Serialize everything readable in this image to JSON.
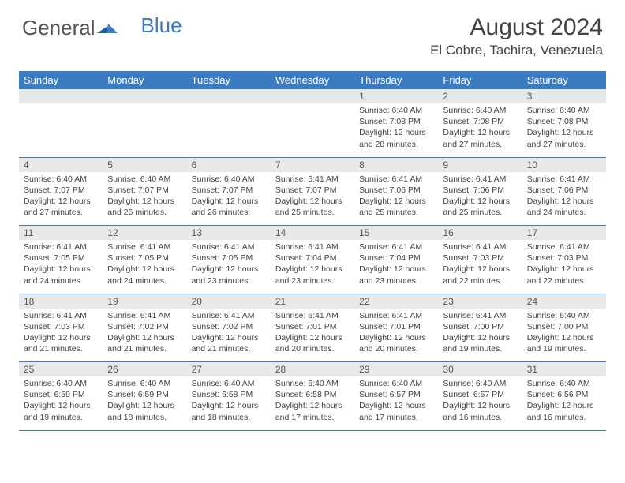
{
  "logo": {
    "part1": "General",
    "part2": "Blue"
  },
  "title": "August 2024",
  "location": "El Cobre, Tachira, Venezuela",
  "colors": {
    "header_bg": "#3b7bbf",
    "daynum_bg": "#e9e9e9",
    "text": "#444444",
    "border": "#3b7bbf"
  },
  "day_headers": [
    "Sunday",
    "Monday",
    "Tuesday",
    "Wednesday",
    "Thursday",
    "Friday",
    "Saturday"
  ],
  "weeks": [
    [
      null,
      null,
      null,
      null,
      {
        "n": "1",
        "sr": "Sunrise: 6:40 AM",
        "ss": "Sunset: 7:08 PM",
        "dl1": "Daylight: 12 hours",
        "dl2": "and 28 minutes."
      },
      {
        "n": "2",
        "sr": "Sunrise: 6:40 AM",
        "ss": "Sunset: 7:08 PM",
        "dl1": "Daylight: 12 hours",
        "dl2": "and 27 minutes."
      },
      {
        "n": "3",
        "sr": "Sunrise: 6:40 AM",
        "ss": "Sunset: 7:08 PM",
        "dl1": "Daylight: 12 hours",
        "dl2": "and 27 minutes."
      }
    ],
    [
      {
        "n": "4",
        "sr": "Sunrise: 6:40 AM",
        "ss": "Sunset: 7:07 PM",
        "dl1": "Daylight: 12 hours",
        "dl2": "and 27 minutes."
      },
      {
        "n": "5",
        "sr": "Sunrise: 6:40 AM",
        "ss": "Sunset: 7:07 PM",
        "dl1": "Daylight: 12 hours",
        "dl2": "and 26 minutes."
      },
      {
        "n": "6",
        "sr": "Sunrise: 6:40 AM",
        "ss": "Sunset: 7:07 PM",
        "dl1": "Daylight: 12 hours",
        "dl2": "and 26 minutes."
      },
      {
        "n": "7",
        "sr": "Sunrise: 6:41 AM",
        "ss": "Sunset: 7:07 PM",
        "dl1": "Daylight: 12 hours",
        "dl2": "and 25 minutes."
      },
      {
        "n": "8",
        "sr": "Sunrise: 6:41 AM",
        "ss": "Sunset: 7:06 PM",
        "dl1": "Daylight: 12 hours",
        "dl2": "and 25 minutes."
      },
      {
        "n": "9",
        "sr": "Sunrise: 6:41 AM",
        "ss": "Sunset: 7:06 PM",
        "dl1": "Daylight: 12 hours",
        "dl2": "and 25 minutes."
      },
      {
        "n": "10",
        "sr": "Sunrise: 6:41 AM",
        "ss": "Sunset: 7:06 PM",
        "dl1": "Daylight: 12 hours",
        "dl2": "and 24 minutes."
      }
    ],
    [
      {
        "n": "11",
        "sr": "Sunrise: 6:41 AM",
        "ss": "Sunset: 7:05 PM",
        "dl1": "Daylight: 12 hours",
        "dl2": "and 24 minutes."
      },
      {
        "n": "12",
        "sr": "Sunrise: 6:41 AM",
        "ss": "Sunset: 7:05 PM",
        "dl1": "Daylight: 12 hours",
        "dl2": "and 24 minutes."
      },
      {
        "n": "13",
        "sr": "Sunrise: 6:41 AM",
        "ss": "Sunset: 7:05 PM",
        "dl1": "Daylight: 12 hours",
        "dl2": "and 23 minutes."
      },
      {
        "n": "14",
        "sr": "Sunrise: 6:41 AM",
        "ss": "Sunset: 7:04 PM",
        "dl1": "Daylight: 12 hours",
        "dl2": "and 23 minutes."
      },
      {
        "n": "15",
        "sr": "Sunrise: 6:41 AM",
        "ss": "Sunset: 7:04 PM",
        "dl1": "Daylight: 12 hours",
        "dl2": "and 23 minutes."
      },
      {
        "n": "16",
        "sr": "Sunrise: 6:41 AM",
        "ss": "Sunset: 7:03 PM",
        "dl1": "Daylight: 12 hours",
        "dl2": "and 22 minutes."
      },
      {
        "n": "17",
        "sr": "Sunrise: 6:41 AM",
        "ss": "Sunset: 7:03 PM",
        "dl1": "Daylight: 12 hours",
        "dl2": "and 22 minutes."
      }
    ],
    [
      {
        "n": "18",
        "sr": "Sunrise: 6:41 AM",
        "ss": "Sunset: 7:03 PM",
        "dl1": "Daylight: 12 hours",
        "dl2": "and 21 minutes."
      },
      {
        "n": "19",
        "sr": "Sunrise: 6:41 AM",
        "ss": "Sunset: 7:02 PM",
        "dl1": "Daylight: 12 hours",
        "dl2": "and 21 minutes."
      },
      {
        "n": "20",
        "sr": "Sunrise: 6:41 AM",
        "ss": "Sunset: 7:02 PM",
        "dl1": "Daylight: 12 hours",
        "dl2": "and 21 minutes."
      },
      {
        "n": "21",
        "sr": "Sunrise: 6:41 AM",
        "ss": "Sunset: 7:01 PM",
        "dl1": "Daylight: 12 hours",
        "dl2": "and 20 minutes."
      },
      {
        "n": "22",
        "sr": "Sunrise: 6:41 AM",
        "ss": "Sunset: 7:01 PM",
        "dl1": "Daylight: 12 hours",
        "dl2": "and 20 minutes."
      },
      {
        "n": "23",
        "sr": "Sunrise: 6:41 AM",
        "ss": "Sunset: 7:00 PM",
        "dl1": "Daylight: 12 hours",
        "dl2": "and 19 minutes."
      },
      {
        "n": "24",
        "sr": "Sunrise: 6:40 AM",
        "ss": "Sunset: 7:00 PM",
        "dl1": "Daylight: 12 hours",
        "dl2": "and 19 minutes."
      }
    ],
    [
      {
        "n": "25",
        "sr": "Sunrise: 6:40 AM",
        "ss": "Sunset: 6:59 PM",
        "dl1": "Daylight: 12 hours",
        "dl2": "and 19 minutes."
      },
      {
        "n": "26",
        "sr": "Sunrise: 6:40 AM",
        "ss": "Sunset: 6:59 PM",
        "dl1": "Daylight: 12 hours",
        "dl2": "and 18 minutes."
      },
      {
        "n": "27",
        "sr": "Sunrise: 6:40 AM",
        "ss": "Sunset: 6:58 PM",
        "dl1": "Daylight: 12 hours",
        "dl2": "and 18 minutes."
      },
      {
        "n": "28",
        "sr": "Sunrise: 6:40 AM",
        "ss": "Sunset: 6:58 PM",
        "dl1": "Daylight: 12 hours",
        "dl2": "and 17 minutes."
      },
      {
        "n": "29",
        "sr": "Sunrise: 6:40 AM",
        "ss": "Sunset: 6:57 PM",
        "dl1": "Daylight: 12 hours",
        "dl2": "and 17 minutes."
      },
      {
        "n": "30",
        "sr": "Sunrise: 6:40 AM",
        "ss": "Sunset: 6:57 PM",
        "dl1": "Daylight: 12 hours",
        "dl2": "and 16 minutes."
      },
      {
        "n": "31",
        "sr": "Sunrise: 6:40 AM",
        "ss": "Sunset: 6:56 PM",
        "dl1": "Daylight: 12 hours",
        "dl2": "and 16 minutes."
      }
    ]
  ]
}
